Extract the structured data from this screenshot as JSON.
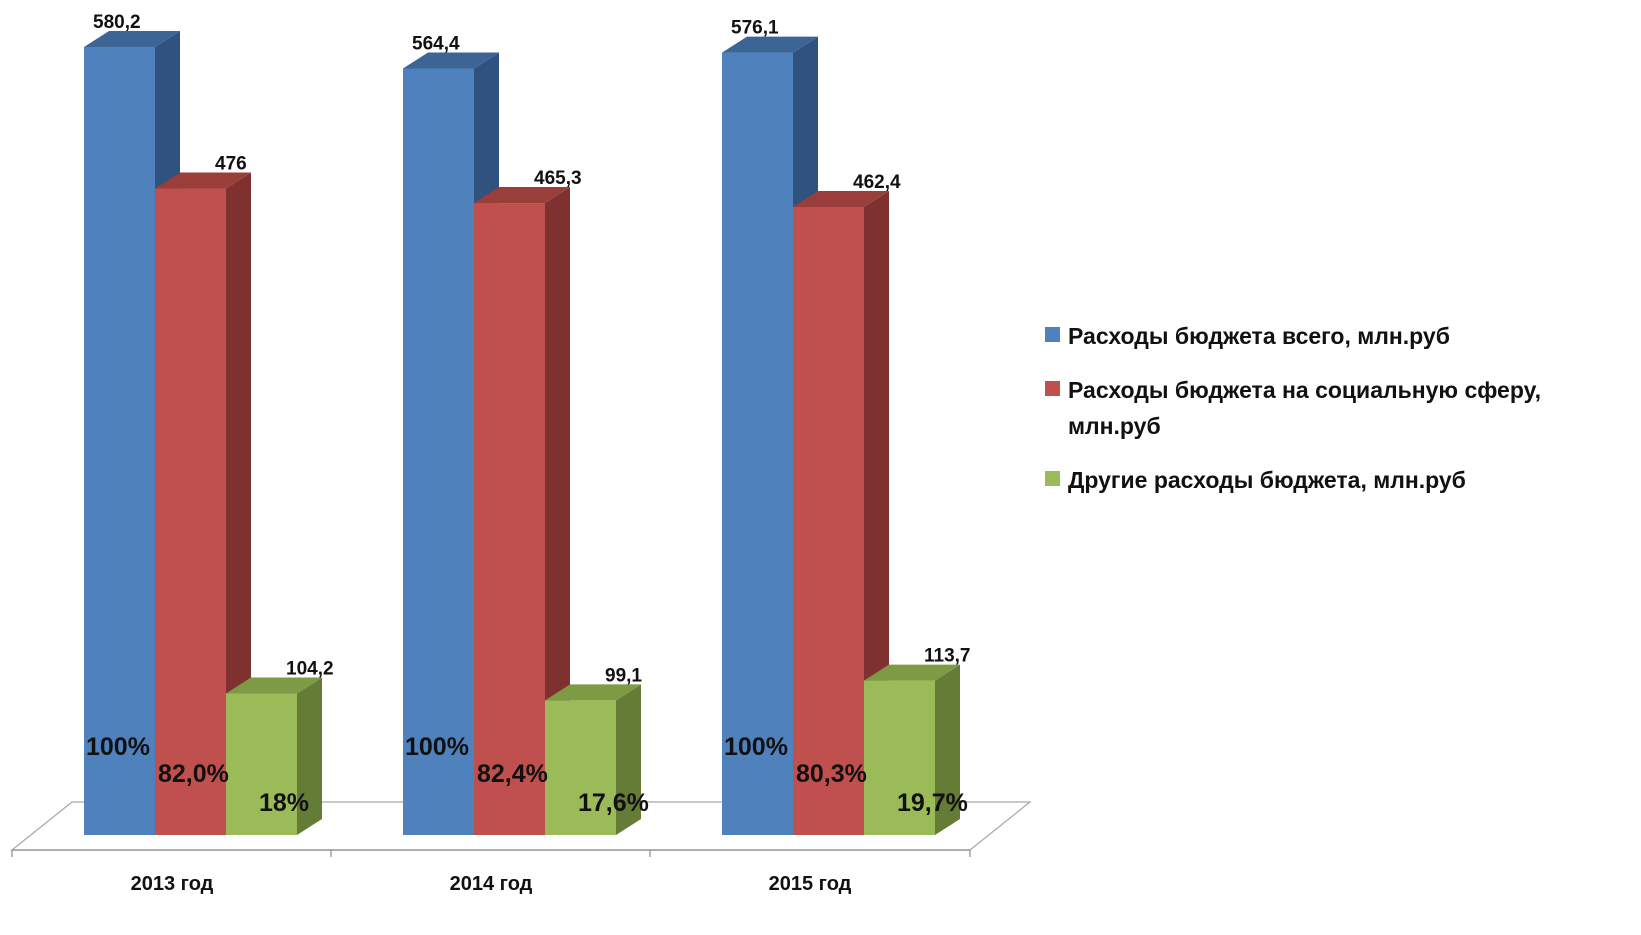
{
  "chart_data": {
    "type": "bar",
    "categories": [
      "2013 год",
      "2014 год",
      "2015 год"
    ],
    "series": [
      {
        "name": "Расходы бюджета всего, млн.руб",
        "values": [
          580.2,
          564.4,
          576.1
        ],
        "value_labels": [
          "580,2",
          "564,4",
          "576,1"
        ],
        "percent_labels": [
          "100%",
          "100%",
          "100%"
        ],
        "color": "#4f81bd",
        "side_color": "#2f527f",
        "top_color": "#3c6596"
      },
      {
        "name": "Расходы бюджета на социальную сферу, млн.руб",
        "values": [
          476,
          465.3,
          462.4
        ],
        "value_labels": [
          "476",
          "465,3",
          "462,4"
        ],
        "percent_labels": [
          "82,0%",
          "82,4%",
          "80,3%"
        ],
        "color": "#c0504d",
        "side_color": "#7f3130",
        "top_color": "#9a3e3b"
      },
      {
        "name": "Другие расходы бюджета, млн.руб",
        "values": [
          104.2,
          99.1,
          113.7
        ],
        "value_labels": [
          "104,2",
          "99,1",
          "113,7"
        ],
        "percent_labels": [
          "18%",
          "17,6%",
          "19,7%"
        ],
        "color": "#9bbb59",
        "side_color": "#657c36",
        "top_color": "#7d9a44"
      }
    ],
    "xlabel": "",
    "ylabel": "",
    "ylim": [
      0,
      580.2
    ],
    "grid": false,
    "legend": "right",
    "style": "3d-clustered-column"
  }
}
